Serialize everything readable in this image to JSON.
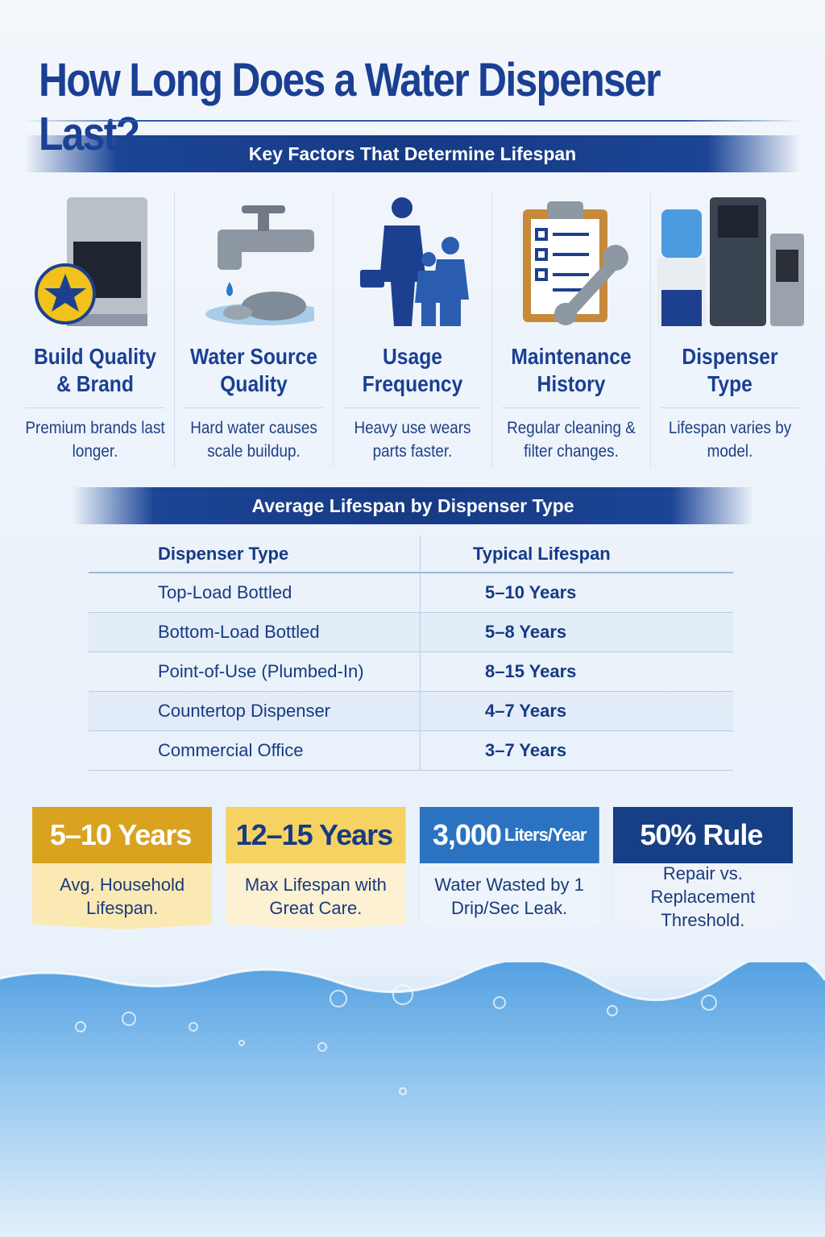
{
  "title": "How Long Does a Water Dispenser Last?",
  "factors_banner": "Key Factors That Determine Lifespan",
  "factors": [
    {
      "icon": "dispenser-star-icon",
      "heading": "Build Quality & Brand",
      "desc": "Premium brands last longer."
    },
    {
      "icon": "faucet-icon",
      "heading": "Water Source Quality",
      "desc": "Hard water causes scale buildup."
    },
    {
      "icon": "family-icon",
      "heading": "Usage Frequency",
      "desc": "Heavy use wears parts faster."
    },
    {
      "icon": "clipboard-wrench-icon",
      "heading": "Maintenance History",
      "desc": "Regular cleaning & filter changes."
    },
    {
      "icon": "dispensers-icon",
      "heading": "Dispenser Type",
      "desc": "Lifespan varies by model."
    }
  ],
  "table_banner": "Average Lifespan by Dispenser Type",
  "table": {
    "headers": [
      "Dispenser Type",
      "Typical Lifespan"
    ],
    "rows": [
      [
        "Top-Load Bottled",
        "5–10 Years"
      ],
      [
        "Bottom-Load Bottled",
        "5–8 Years"
      ],
      [
        "Point-of-Use (Plumbed-In)",
        "8–15 Years"
      ],
      [
        "Countertop Dispenser",
        "4–7 Years"
      ],
      [
        "Commercial Office",
        "3–7 Years"
      ]
    ]
  },
  "stats": [
    {
      "value": "5–10 Years",
      "unit": "",
      "label": "Avg. Household Lifespan.",
      "top": "#d9a21f",
      "bottom": "#fbe9b4",
      "text": "#ffffff"
    },
    {
      "value": "12–15 Years",
      "unit": "",
      "label": "Max Lifespan with Great Care.",
      "top": "#f6d262",
      "bottom": "#fcf1d2",
      "text": "#163a84"
    },
    {
      "value": "3,000",
      "unit": "Liters/Year",
      "label": "Water Wasted by 1 Drip/Sec Leak.",
      "top": "#2b73c0",
      "bottom": "#eef4fb",
      "text": "#ffffff"
    },
    {
      "value": "50% Rule",
      "unit": "",
      "label": "Repair vs. Replacement Threshold.",
      "top": "#163f86",
      "bottom": "#eef3fa",
      "text": "#ffffff"
    }
  ]
}
